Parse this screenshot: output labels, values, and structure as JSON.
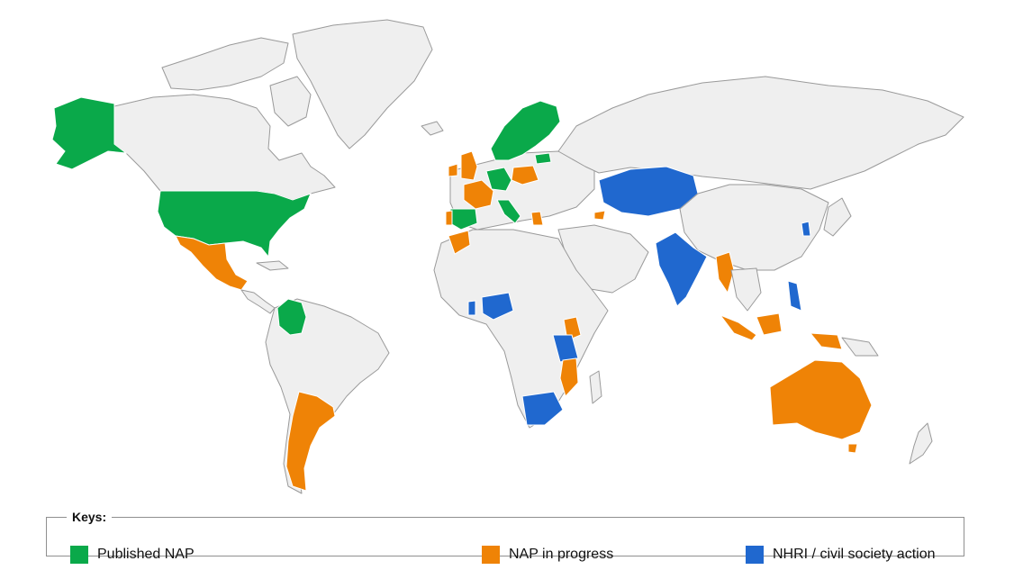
{
  "legend": {
    "title": "Keys:",
    "items": [
      {
        "label": "Published NAP",
        "color": "#0aa94a"
      },
      {
        "label": "NAP in progress",
        "color": "#ef8306"
      },
      {
        "label": "NHRI / civil society action",
        "color": "#2068cf"
      }
    ]
  },
  "colors": {
    "land": "#efefef",
    "border": "#9a9a9a",
    "background": "#ffffff"
  }
}
